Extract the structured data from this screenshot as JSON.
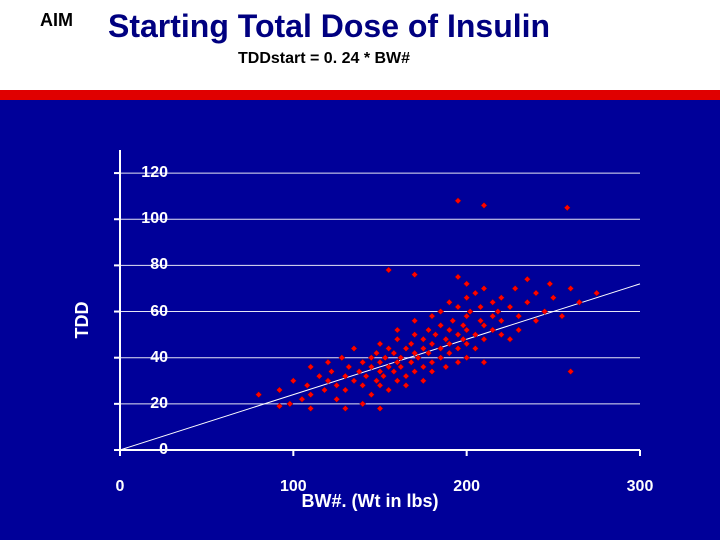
{
  "header": {
    "aim": "AIM",
    "title": "Starting Total Dose of Insulin",
    "subtitle": "TDDstart = 0. 24 * BW#",
    "title_color": "#000080",
    "redbar_color": "#e00000"
  },
  "chart": {
    "type": "scatter",
    "background_color": "#000099",
    "plot_background": "#000099",
    "xlabel": "BW#. (Wt in lbs)",
    "ylabel": "TDD",
    "label_fontsize": 18,
    "tick_fontsize": 16,
    "tick_color": "#ffffff",
    "grid_color": "#ffffff",
    "axis_color": "#ffffff",
    "xlim": [
      0,
      300
    ],
    "ylim": [
      0,
      130
    ],
    "xticks": [
      0,
      100,
      200,
      300
    ],
    "yticks": [
      0,
      20,
      40,
      60,
      80,
      100,
      120
    ],
    "regression_line": {
      "x1": 0,
      "y1": 0,
      "x2": 300,
      "y2": 72,
      "color": "#ffffff",
      "width": 1
    },
    "marker": {
      "shape": "diamond",
      "size": 6,
      "fill": "#ff0000",
      "stroke": "#800000"
    },
    "points": [
      [
        80,
        24
      ],
      [
        92,
        26
      ],
      [
        98,
        20
      ],
      [
        100,
        30
      ],
      [
        105,
        22
      ],
      [
        108,
        28
      ],
      [
        110,
        24
      ],
      [
        110,
        36
      ],
      [
        115,
        32
      ],
      [
        118,
        26
      ],
      [
        120,
        30
      ],
      [
        120,
        38
      ],
      [
        122,
        34
      ],
      [
        125,
        28
      ],
      [
        125,
        22
      ],
      [
        128,
        40
      ],
      [
        130,
        32
      ],
      [
        130,
        26
      ],
      [
        132,
        36
      ],
      [
        135,
        30
      ],
      [
        135,
        44
      ],
      [
        138,
        34
      ],
      [
        140,
        38
      ],
      [
        140,
        28
      ],
      [
        140,
        20
      ],
      [
        142,
        32
      ],
      [
        145,
        40
      ],
      [
        145,
        36
      ],
      [
        145,
        24
      ],
      [
        148,
        42
      ],
      [
        148,
        30
      ],
      [
        150,
        38
      ],
      [
        150,
        34
      ],
      [
        150,
        46
      ],
      [
        150,
        28
      ],
      [
        152,
        32
      ],
      [
        153,
        40
      ],
      [
        155,
        36
      ],
      [
        155,
        44
      ],
      [
        155,
        26
      ],
      [
        158,
        42
      ],
      [
        158,
        34
      ],
      [
        160,
        38
      ],
      [
        160,
        30
      ],
      [
        160,
        48
      ],
      [
        160,
        52
      ],
      [
        162,
        40
      ],
      [
        162,
        36
      ],
      [
        165,
        44
      ],
      [
        165,
        32
      ],
      [
        165,
        28
      ],
      [
        168,
        46
      ],
      [
        168,
        38
      ],
      [
        170,
        42
      ],
      [
        170,
        34
      ],
      [
        170,
        50
      ],
      [
        170,
        56
      ],
      [
        172,
        40
      ],
      [
        175,
        48
      ],
      [
        175,
        36
      ],
      [
        175,
        44
      ],
      [
        175,
        30
      ],
      [
        178,
        52
      ],
      [
        178,
        42
      ],
      [
        180,
        46
      ],
      [
        180,
        38
      ],
      [
        180,
        58
      ],
      [
        180,
        34
      ],
      [
        182,
        50
      ],
      [
        185,
        44
      ],
      [
        185,
        40
      ],
      [
        185,
        60
      ],
      [
        185,
        54
      ],
      [
        188,
        48
      ],
      [
        188,
        36
      ],
      [
        190,
        52
      ],
      [
        190,
        42
      ],
      [
        190,
        64
      ],
      [
        190,
        46
      ],
      [
        192,
        56
      ],
      [
        195,
        50
      ],
      [
        195,
        38
      ],
      [
        195,
        44
      ],
      [
        195,
        62
      ],
      [
        198,
        54
      ],
      [
        198,
        48
      ],
      [
        200,
        58
      ],
      [
        200,
        40
      ],
      [
        200,
        66
      ],
      [
        200,
        52
      ],
      [
        200,
        46
      ],
      [
        202,
        60
      ],
      [
        205,
        50
      ],
      [
        205,
        68
      ],
      [
        205,
        44
      ],
      [
        208,
        56
      ],
      [
        208,
        62
      ],
      [
        210,
        54
      ],
      [
        210,
        48
      ],
      [
        210,
        70
      ],
      [
        210,
        38
      ],
      [
        215,
        64
      ],
      [
        215,
        52
      ],
      [
        215,
        58
      ],
      [
        218,
        60
      ],
      [
        220,
        50
      ],
      [
        220,
        66
      ],
      [
        220,
        56
      ],
      [
        225,
        62
      ],
      [
        225,
        48
      ],
      [
        228,
        70
      ],
      [
        230,
        58
      ],
      [
        230,
        52
      ],
      [
        235,
        64
      ],
      [
        235,
        74
      ],
      [
        240,
        68
      ],
      [
        240,
        56
      ],
      [
        245,
        60
      ],
      [
        248,
        72
      ],
      [
        250,
        66
      ],
      [
        255,
        58
      ],
      [
        260,
        70
      ],
      [
        265,
        64
      ],
      [
        275,
        68
      ],
      [
        195,
        108
      ],
      [
        210,
        106
      ],
      [
        258,
        105
      ],
      [
        170,
        76
      ],
      [
        155,
        78
      ],
      [
        195,
        75
      ],
      [
        200,
        72
      ],
      [
        92,
        19
      ],
      [
        110,
        18
      ],
      [
        130,
        18
      ],
      [
        150,
        18
      ],
      [
        260,
        34
      ]
    ]
  }
}
